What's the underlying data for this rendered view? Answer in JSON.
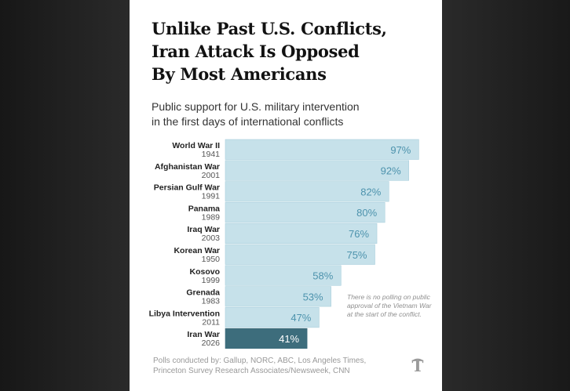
{
  "title_lines": [
    "Unlike Past U.S. Conflicts,",
    "Iran Attack Is Opposed",
    "By Most Americans"
  ],
  "subtitle_lines": [
    "Public support for U.S. military intervention",
    "in the first days of international conflicts"
  ],
  "chart_data": {
    "type": "bar",
    "orientation": "horizontal",
    "xlim": [
      0,
      100
    ],
    "categories": [
      "World War II",
      "Afghanistan War",
      "Persian Gulf War",
      "Panama",
      "Iraq War",
      "Korean War",
      "Kosovo",
      "Grenada",
      "Libya Intervention",
      "Iran War"
    ],
    "years": [
      "1941",
      "2001",
      "1991",
      "1989",
      "2003",
      "1950",
      "1999",
      "1983",
      "2011",
      "2026"
    ],
    "values": [
      97,
      92,
      82,
      80,
      76,
      75,
      58,
      53,
      47,
      41
    ],
    "value_labels": [
      "97%",
      "92%",
      "82%",
      "80%",
      "76%",
      "75%",
      "58%",
      "53%",
      "47%",
      "41%"
    ],
    "highlight": "Iran War",
    "colors": {
      "bar": "#c6e1ea",
      "bar_edge": "#a9cfdc",
      "bar_text": "#4d93ad",
      "highlight_bar": "#3d6d7c",
      "highlight_text": "#ffffff",
      "label": "#222222",
      "year": "#555555"
    }
  },
  "footnote": "There is no polling on public approval of the Vietnam War at the start of the conflict.",
  "credits_lines": [
    "Polls conducted by: Gallup, NORC, ABC, Los Angeles Times,",
    "Princeton Survey Research Associates/Newsweek, CNN"
  ],
  "logo_icon": "nyt-logo-icon"
}
